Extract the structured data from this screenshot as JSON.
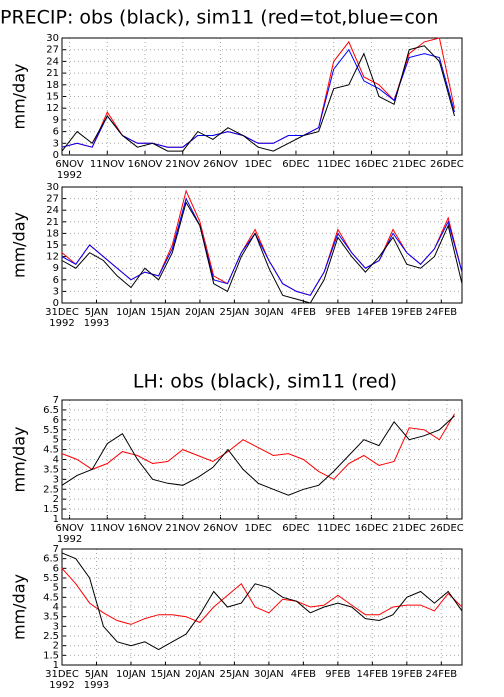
{
  "chart_data": [
    {
      "type": "line",
      "title": "PRECIP: obs (black), sim11 (red=tot,blue=con",
      "y_label": "mm/day",
      "grid": true,
      "xlim": [
        "1992-11-05",
        "1992-12-28"
      ],
      "ylim": [
        0,
        30
      ],
      "yticks": [
        0,
        3,
        6,
        9,
        12,
        15,
        18,
        21,
        24,
        27,
        30
      ],
      "xticks": [
        {
          "value": "1992-11-06",
          "label": "6NOV\n1992"
        },
        {
          "value": "1992-11-11",
          "label": "11NOV"
        },
        {
          "value": "1992-11-16",
          "label": "16NOV"
        },
        {
          "value": "1992-11-21",
          "label": "21NOV"
        },
        {
          "value": "1992-11-26",
          "label": "26NOV"
        },
        {
          "value": "1992-12-01",
          "label": "1DEC"
        },
        {
          "value": "1992-12-06",
          "label": "6DEC"
        },
        {
          "value": "1992-12-11",
          "label": "11DEC"
        },
        {
          "value": "1992-12-16",
          "label": "16DEC"
        },
        {
          "value": "1992-12-21",
          "label": "21DEC"
        },
        {
          "value": "1992-12-26",
          "label": "26DEC"
        }
      ],
      "x": [
        "1992-11-05",
        "1992-11-07",
        "1992-11-09",
        "1992-11-11",
        "1992-11-13",
        "1992-11-15",
        "1992-11-17",
        "1992-11-19",
        "1992-11-21",
        "1992-11-23",
        "1992-11-25",
        "1992-11-27",
        "1992-11-29",
        "1992-12-01",
        "1992-12-03",
        "1992-12-05",
        "1992-12-07",
        "1992-12-09",
        "1992-12-11",
        "1992-12-13",
        "1992-12-15",
        "1992-12-17",
        "1992-12-19",
        "1992-12-21",
        "1992-12-23",
        "1992-12-25",
        "1992-12-27"
      ],
      "series": [
        {
          "color": "#ff0000",
          "values": [
            2,
            3,
            2,
            11,
            5,
            3,
            3,
            2,
            2,
            5,
            5,
            6,
            5,
            3,
            3,
            5,
            5,
            7,
            24,
            29,
            20,
            18,
            14,
            26,
            29,
            30,
            12
          ]
        },
        {
          "color": "#0000ff",
          "values": [
            2,
            3,
            2,
            10,
            5,
            3,
            3,
            2,
            2,
            5,
            5,
            6,
            5,
            3,
            3,
            5,
            5,
            7,
            22,
            27,
            19,
            17,
            14,
            25,
            26,
            25,
            11
          ]
        },
        {
          "color": "#000000",
          "values": [
            1,
            6,
            3,
            10,
            5,
            2,
            3,
            1,
            1,
            6,
            4,
            7,
            5,
            2,
            1,
            3,
            5,
            6,
            17,
            18,
            26,
            15,
            13,
            27,
            28,
            24,
            10
          ]
        }
      ]
    },
    {
      "type": "line",
      "grid": true,
      "y_label": "mm/day",
      "xlim": [
        "1992-12-31",
        "1993-02-27"
      ],
      "ylim": [
        0,
        30
      ],
      "yticks": [
        0,
        3,
        6,
        9,
        12,
        15,
        18,
        21,
        24,
        27,
        30
      ],
      "xticks": [
        {
          "value": "1992-12-31",
          "label": "31DEC\n1992"
        },
        {
          "value": "1993-01-05",
          "label": "5JAN\n1993"
        },
        {
          "value": "1993-01-10",
          "label": "10JAN"
        },
        {
          "value": "1993-01-15",
          "label": "15JAN"
        },
        {
          "value": "1993-01-20",
          "label": "20JAN"
        },
        {
          "value": "1993-01-25",
          "label": "25JAN"
        },
        {
          "value": "1993-01-30",
          "label": "30JAN"
        },
        {
          "value": "1993-02-04",
          "label": "4FEB"
        },
        {
          "value": "1993-02-09",
          "label": "9FEB"
        },
        {
          "value": "1993-02-14",
          "label": "14FEB"
        },
        {
          "value": "1993-02-19",
          "label": "19FEB"
        },
        {
          "value": "1993-02-24",
          "label": "24FEB"
        }
      ],
      "x": [
        "1992-12-31",
        "1993-01-02",
        "1993-01-04",
        "1993-01-06",
        "1993-01-08",
        "1993-01-10",
        "1993-01-12",
        "1993-01-14",
        "1993-01-16",
        "1993-01-18",
        "1993-01-20",
        "1993-01-22",
        "1993-01-24",
        "1993-01-26",
        "1993-01-28",
        "1993-01-30",
        "1993-02-01",
        "1993-02-03",
        "1993-02-05",
        "1993-02-07",
        "1993-02-09",
        "1993-02-11",
        "1993-02-13",
        "1993-02-15",
        "1993-02-17",
        "1993-02-19",
        "1993-02-21",
        "1993-02-23",
        "1993-02-25",
        "1993-02-27"
      ],
      "series": [
        {
          "color": "#ff0000",
          "values": [
            13,
            10,
            15,
            12,
            9,
            6,
            8,
            7,
            15,
            29,
            21,
            7,
            5,
            13,
            19,
            11,
            5,
            3,
            2,
            8,
            19,
            13,
            9,
            11,
            19,
            13,
            10,
            14,
            22,
            8
          ]
        },
        {
          "color": "#0000ff",
          "values": [
            12,
            10,
            15,
            12,
            9,
            6,
            8,
            7,
            14,
            27,
            20,
            6,
            5,
            13,
            18,
            11,
            5,
            3,
            2,
            8,
            18,
            13,
            9,
            11,
            18,
            13,
            10,
            14,
            21,
            8
          ]
        },
        {
          "color": "#000000",
          "values": [
            11,
            9,
            13,
            11,
            7,
            4,
            9,
            6,
            13,
            26,
            20,
            5,
            3,
            12,
            18,
            9,
            2,
            1,
            0,
            6,
            17,
            12,
            8,
            12,
            17,
            10,
            9,
            12,
            20,
            5
          ]
        }
      ]
    },
    {
      "type": "line",
      "title": "LH: obs (black), sim11 (red)",
      "y_label": "mm/day",
      "grid": true,
      "xlim": [
        "1992-11-05",
        "1992-12-28"
      ],
      "ylim": [
        1,
        7
      ],
      "yticks": [
        1,
        1.5,
        2,
        2.5,
        3,
        3.5,
        4,
        4.5,
        5,
        5.5,
        6,
        6.5,
        7
      ],
      "xticks": [
        {
          "value": "1992-11-06",
          "label": "6NOV\n1992"
        },
        {
          "value": "1992-11-11",
          "label": "11NOV"
        },
        {
          "value": "1992-11-16",
          "label": "16NOV"
        },
        {
          "value": "1992-11-21",
          "label": "21NOV"
        },
        {
          "value": "1992-11-26",
          "label": "26NOV"
        },
        {
          "value": "1992-12-01",
          "label": "1DEC"
        },
        {
          "value": "1992-12-06",
          "label": "6DEC"
        },
        {
          "value": "1992-12-11",
          "label": "11DEC"
        },
        {
          "value": "1992-12-16",
          "label": "16DEC"
        },
        {
          "value": "1992-12-21",
          "label": "21DEC"
        },
        {
          "value": "1992-12-26",
          "label": "26DEC"
        }
      ],
      "x": [
        "1992-11-05",
        "1992-11-07",
        "1992-11-09",
        "1992-11-11",
        "1992-11-13",
        "1992-11-15",
        "1992-11-17",
        "1992-11-19",
        "1992-11-21",
        "1992-11-23",
        "1992-11-25",
        "1992-11-27",
        "1992-11-29",
        "1992-12-01",
        "1992-12-03",
        "1992-12-05",
        "1992-12-07",
        "1992-12-09",
        "1992-12-11",
        "1992-12-13",
        "1992-12-15",
        "1992-12-17",
        "1992-12-19",
        "1992-12-21",
        "1992-12-23",
        "1992-12-25",
        "1992-12-27"
      ],
      "series": [
        {
          "color": "#ff0000",
          "values": [
            4.3,
            4.0,
            3.5,
            3.8,
            4.4,
            4.2,
            3.8,
            3.9,
            4.5,
            4.2,
            3.9,
            4.4,
            5.0,
            4.6,
            4.2,
            4.3,
            4.0,
            3.4,
            3.0,
            3.8,
            4.2,
            3.7,
            3.9,
            5.6,
            5.5,
            5.0,
            6.3
          ]
        },
        {
          "color": "#000000",
          "values": [
            2.7,
            3.2,
            3.5,
            4.8,
            5.3,
            4.0,
            3.0,
            2.8,
            2.7,
            3.1,
            3.6,
            4.5,
            3.5,
            2.8,
            2.5,
            2.2,
            2.5,
            2.7,
            3.4,
            4.2,
            5.0,
            4.7,
            5.9,
            5.0,
            5.2,
            5.5,
            6.2
          ]
        }
      ]
    },
    {
      "type": "line",
      "grid": true,
      "y_label": "mm/day",
      "xlim": [
        "1992-12-31",
        "1993-02-27"
      ],
      "ylim": [
        1,
        7
      ],
      "yticks": [
        1,
        1.5,
        2,
        2.5,
        3,
        3.5,
        4,
        4.5,
        5,
        5.5,
        6,
        6.5,
        7
      ],
      "xticks": [
        {
          "value": "1992-12-31",
          "label": "31DEC\n1992"
        },
        {
          "value": "1993-01-05",
          "label": "5JAN\n1993"
        },
        {
          "value": "1993-01-10",
          "label": "10JAN"
        },
        {
          "value": "1993-01-15",
          "label": "15JAN"
        },
        {
          "value": "1993-01-20",
          "label": "20JAN"
        },
        {
          "value": "1993-01-25",
          "label": "25JAN"
        },
        {
          "value": "1993-01-30",
          "label": "30JAN"
        },
        {
          "value": "1993-02-04",
          "label": "4FEB"
        },
        {
          "value": "1993-02-09",
          "label": "9FEB"
        },
        {
          "value": "1993-02-14",
          "label": "14FEB"
        },
        {
          "value": "1993-02-19",
          "label": "19FEB"
        },
        {
          "value": "1993-02-24",
          "label": "24FEB"
        }
      ],
      "x": [
        "1992-12-31",
        "1993-01-02",
        "1993-01-04",
        "1993-01-06",
        "1993-01-08",
        "1993-01-10",
        "1993-01-12",
        "1993-01-14",
        "1993-01-16",
        "1993-01-18",
        "1993-01-20",
        "1993-01-22",
        "1993-01-24",
        "1993-01-26",
        "1993-01-28",
        "1993-01-30",
        "1993-02-01",
        "1993-02-03",
        "1993-02-05",
        "1993-02-07",
        "1993-02-09",
        "1993-02-11",
        "1993-02-13",
        "1993-02-15",
        "1993-02-17",
        "1993-02-19",
        "1993-02-21",
        "1993-02-23",
        "1993-02-25",
        "1993-02-27"
      ],
      "series": [
        {
          "color": "#ff0000",
          "values": [
            6.0,
            5.2,
            4.2,
            3.7,
            3.3,
            3.1,
            3.4,
            3.6,
            3.6,
            3.5,
            3.2,
            4.0,
            4.6,
            5.2,
            4.0,
            3.7,
            4.4,
            4.3,
            4.0,
            4.1,
            4.6,
            4.1,
            3.6,
            3.6,
            4.0,
            4.1,
            4.1,
            3.8,
            4.7,
            4.0
          ]
        },
        {
          "color": "#000000",
          "values": [
            6.8,
            6.5,
            5.5,
            3.0,
            2.2,
            2.0,
            2.2,
            1.8,
            2.2,
            2.6,
            3.6,
            4.8,
            4.0,
            4.2,
            5.2,
            5.0,
            4.5,
            4.3,
            3.7,
            4.0,
            4.2,
            4.0,
            3.4,
            3.3,
            3.6,
            4.5,
            4.8,
            4.2,
            4.8,
            3.8
          ]
        }
      ]
    }
  ]
}
